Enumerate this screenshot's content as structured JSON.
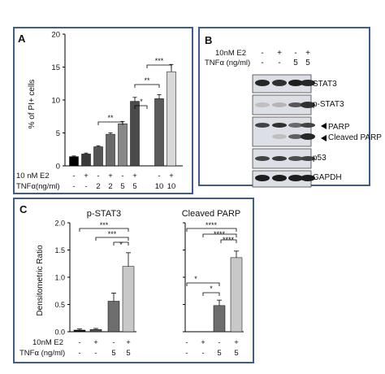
{
  "figure": {
    "panel_labels": {
      "a": "A",
      "b": "B",
      "c": "C"
    }
  },
  "panelA": {
    "ylabel": "% of PI+ cells",
    "yticks": [
      "0",
      "5",
      "10",
      "15",
      "20"
    ],
    "e2_label": "10 nM E2",
    "tnf_label": "TNFα(ng/ml)",
    "e2_row": [
      "-",
      "+",
      "-",
      "+",
      "-",
      "+",
      "-",
      "+"
    ],
    "tnf_row": [
      "-",
      "-",
      "2",
      "2",
      "5",
      "5",
      "10",
      "10"
    ],
    "sig": [
      "**",
      "*",
      "**",
      "***"
    ]
  },
  "panelB": {
    "e2_label": "10nM E2",
    "tnf_label": "TNFα (ng/ml)",
    "e2_row": [
      "-",
      "+",
      "-",
      "+"
    ],
    "tnf_row": [
      "-",
      "-",
      "5",
      "5"
    ],
    "rows": [
      "STAT3",
      "p-STAT3",
      "PARP",
      "Cleaved PARP",
      "p53",
      "GAPDH"
    ]
  },
  "panelC": {
    "ylabel": "Densitometric Ratio",
    "left_title": "p-STAT3",
    "right_title": "Cleaved PARP",
    "yticks": [
      "0.0",
      "0.5",
      "1.0",
      "1.5",
      "2.0"
    ],
    "e2_label": "10nM E2",
    "tnf_label": "TNFα (ng/ml)",
    "e2_row": [
      "-",
      "+",
      "-",
      "+"
    ],
    "tnf_row": [
      "-",
      "-",
      "5",
      "5"
    ],
    "left_sig": [
      "***",
      "***",
      "*"
    ],
    "right_sig": [
      "****",
      "****",
      "****",
      "*",
      "*"
    ]
  },
  "chart_data": [
    {
      "type": "bar",
      "title": "",
      "ylabel": "% of PI+ cells",
      "ylim": [
        0,
        20
      ],
      "categories": [
        "1",
        "2",
        "3",
        "4",
        "5",
        "6",
        "7",
        "8"
      ],
      "values": [
        1.4,
        1.8,
        2.9,
        4.8,
        6.4,
        9.8,
        10.2,
        14.3
      ],
      "errors": [
        0.1,
        0.15,
        0.15,
        0.2,
        0.35,
        0.6,
        0.6,
        1.1
      ],
      "colors": [
        "#000000",
        "#3a3a3a",
        "#555555",
        "#6a6a6a",
        "#888888",
        "#4a4a4a",
        "#5a5a5a",
        "#d8d8d8"
      ]
    },
    {
      "type": "bar",
      "title": "p-STAT3",
      "ylabel": "Densitometric Ratio",
      "ylim": [
        0,
        2
      ],
      "categories": [
        "1",
        "2",
        "3",
        "4"
      ],
      "values": [
        0.03,
        0.04,
        0.56,
        1.2
      ],
      "errors": [
        0.02,
        0.02,
        0.15,
        0.25
      ],
      "colors": [
        "#111111",
        "#555555",
        "#6e6e6e",
        "#c8c8c8"
      ]
    },
    {
      "type": "bar",
      "title": "Cleaved PARP",
      "ylabel": "Densitometric Ratio",
      "ylim": [
        0,
        2
      ],
      "categories": [
        "1",
        "2",
        "3",
        "4"
      ],
      "values": [
        0,
        0,
        0.48,
        1.36
      ],
      "errors": [
        0,
        0,
        0.1,
        0.12
      ],
      "colors": [
        "#111111",
        "#555555",
        "#6e6e6e",
        "#c8c8c8"
      ]
    }
  ]
}
